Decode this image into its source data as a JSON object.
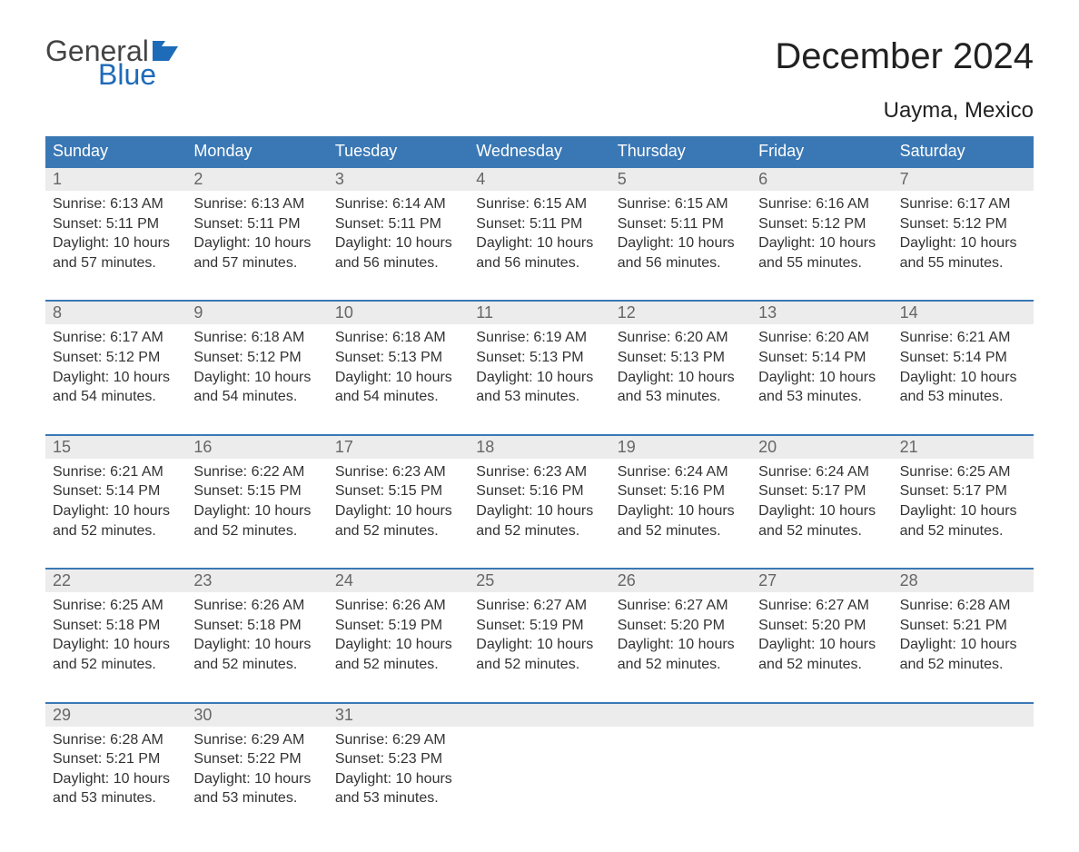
{
  "logo": {
    "text_general": "General",
    "text_blue": "Blue",
    "color_general": "#444444",
    "color_blue": "#1e6bb8"
  },
  "title": "December 2024",
  "location": "Uayma, Mexico",
  "colors": {
    "header_bg": "#3a78b5",
    "header_text": "#ffffff",
    "daynum_bg": "#ececec",
    "daynum_text": "#666666",
    "week_border": "#3a78b5",
    "body_text": "#333333",
    "page_bg": "#ffffff"
  },
  "fonts": {
    "title_size_pt": 30,
    "location_size_pt": 18,
    "header_size_pt": 14,
    "body_size_pt": 12
  },
  "weekdays": [
    "Sunday",
    "Monday",
    "Tuesday",
    "Wednesday",
    "Thursday",
    "Friday",
    "Saturday"
  ],
  "field_labels": {
    "sunrise": "Sunrise",
    "sunset": "Sunset",
    "daylight": "Daylight"
  },
  "weeks": [
    [
      {
        "n": 1,
        "sunrise": "6:13 AM",
        "sunset": "5:11 PM",
        "daylight": "10 hours and 57 minutes."
      },
      {
        "n": 2,
        "sunrise": "6:13 AM",
        "sunset": "5:11 PM",
        "daylight": "10 hours and 57 minutes."
      },
      {
        "n": 3,
        "sunrise": "6:14 AM",
        "sunset": "5:11 PM",
        "daylight": "10 hours and 56 minutes."
      },
      {
        "n": 4,
        "sunrise": "6:15 AM",
        "sunset": "5:11 PM",
        "daylight": "10 hours and 56 minutes."
      },
      {
        "n": 5,
        "sunrise": "6:15 AM",
        "sunset": "5:11 PM",
        "daylight": "10 hours and 56 minutes."
      },
      {
        "n": 6,
        "sunrise": "6:16 AM",
        "sunset": "5:12 PM",
        "daylight": "10 hours and 55 minutes."
      },
      {
        "n": 7,
        "sunrise": "6:17 AM",
        "sunset": "5:12 PM",
        "daylight": "10 hours and 55 minutes."
      }
    ],
    [
      {
        "n": 8,
        "sunrise": "6:17 AM",
        "sunset": "5:12 PM",
        "daylight": "10 hours and 54 minutes."
      },
      {
        "n": 9,
        "sunrise": "6:18 AM",
        "sunset": "5:12 PM",
        "daylight": "10 hours and 54 minutes."
      },
      {
        "n": 10,
        "sunrise": "6:18 AM",
        "sunset": "5:13 PM",
        "daylight": "10 hours and 54 minutes."
      },
      {
        "n": 11,
        "sunrise": "6:19 AM",
        "sunset": "5:13 PM",
        "daylight": "10 hours and 53 minutes."
      },
      {
        "n": 12,
        "sunrise": "6:20 AM",
        "sunset": "5:13 PM",
        "daylight": "10 hours and 53 minutes."
      },
      {
        "n": 13,
        "sunrise": "6:20 AM",
        "sunset": "5:14 PM",
        "daylight": "10 hours and 53 minutes."
      },
      {
        "n": 14,
        "sunrise": "6:21 AM",
        "sunset": "5:14 PM",
        "daylight": "10 hours and 53 minutes."
      }
    ],
    [
      {
        "n": 15,
        "sunrise": "6:21 AM",
        "sunset": "5:14 PM",
        "daylight": "10 hours and 52 minutes."
      },
      {
        "n": 16,
        "sunrise": "6:22 AM",
        "sunset": "5:15 PM",
        "daylight": "10 hours and 52 minutes."
      },
      {
        "n": 17,
        "sunrise": "6:23 AM",
        "sunset": "5:15 PM",
        "daylight": "10 hours and 52 minutes."
      },
      {
        "n": 18,
        "sunrise": "6:23 AM",
        "sunset": "5:16 PM",
        "daylight": "10 hours and 52 minutes."
      },
      {
        "n": 19,
        "sunrise": "6:24 AM",
        "sunset": "5:16 PM",
        "daylight": "10 hours and 52 minutes."
      },
      {
        "n": 20,
        "sunrise": "6:24 AM",
        "sunset": "5:17 PM",
        "daylight": "10 hours and 52 minutes."
      },
      {
        "n": 21,
        "sunrise": "6:25 AM",
        "sunset": "5:17 PM",
        "daylight": "10 hours and 52 minutes."
      }
    ],
    [
      {
        "n": 22,
        "sunrise": "6:25 AM",
        "sunset": "5:18 PM",
        "daylight": "10 hours and 52 minutes."
      },
      {
        "n": 23,
        "sunrise": "6:26 AM",
        "sunset": "5:18 PM",
        "daylight": "10 hours and 52 minutes."
      },
      {
        "n": 24,
        "sunrise": "6:26 AM",
        "sunset": "5:19 PM",
        "daylight": "10 hours and 52 minutes."
      },
      {
        "n": 25,
        "sunrise": "6:27 AM",
        "sunset": "5:19 PM",
        "daylight": "10 hours and 52 minutes."
      },
      {
        "n": 26,
        "sunrise": "6:27 AM",
        "sunset": "5:20 PM",
        "daylight": "10 hours and 52 minutes."
      },
      {
        "n": 27,
        "sunrise": "6:27 AM",
        "sunset": "5:20 PM",
        "daylight": "10 hours and 52 minutes."
      },
      {
        "n": 28,
        "sunrise": "6:28 AM",
        "sunset": "5:21 PM",
        "daylight": "10 hours and 52 minutes."
      }
    ],
    [
      {
        "n": 29,
        "sunrise": "6:28 AM",
        "sunset": "5:21 PM",
        "daylight": "10 hours and 53 minutes."
      },
      {
        "n": 30,
        "sunrise": "6:29 AM",
        "sunset": "5:22 PM",
        "daylight": "10 hours and 53 minutes."
      },
      {
        "n": 31,
        "sunrise": "6:29 AM",
        "sunset": "5:23 PM",
        "daylight": "10 hours and 53 minutes."
      },
      null,
      null,
      null,
      null
    ]
  ]
}
